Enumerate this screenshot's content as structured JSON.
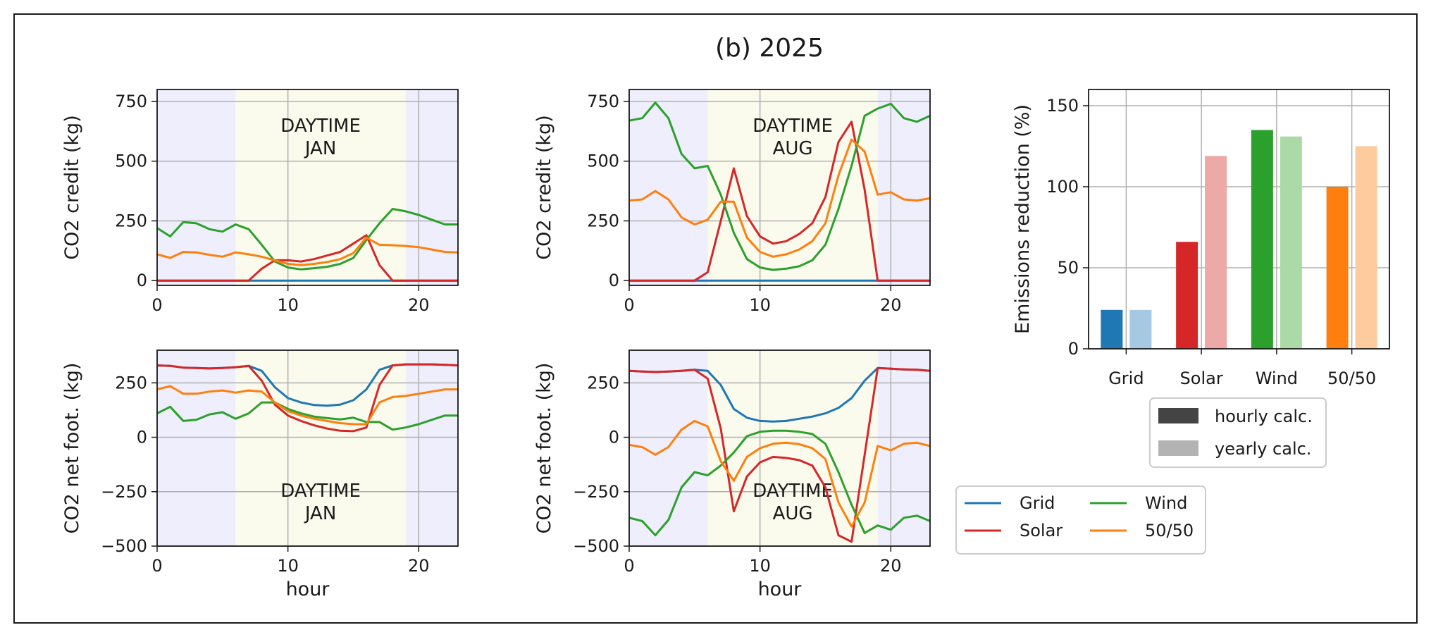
{
  "figure": {
    "title": "(b) 2025",
    "colors": {
      "Grid": "#1f77b4",
      "Solar": "#d62728",
      "Wind": "#2ca02c",
      "50/50": "#ff7f0e",
      "Grid_light": "#a6c8e2",
      "Solar_light": "#eda8a8",
      "Wind_light": "#abdaa6",
      "50/50_light": "#fdcb9d",
      "night_band": "#eeeefc",
      "day_band": "#fafaed",
      "grid_line": "#b0b0b0"
    },
    "line_legend": {
      "entries": [
        "Grid",
        "Solar",
        "Wind",
        "50/50"
      ]
    },
    "bar_legend": {
      "entries": [
        {
          "label": "hourly calc.",
          "color": "#444444"
        },
        {
          "label": "yearly calc.",
          "color": "#b3b3b3"
        }
      ]
    }
  },
  "chart_data": [
    {
      "type": "line",
      "panel": "credit-jan",
      "annotation": [
        "DAYTIME",
        "JAN"
      ],
      "xlabel": "",
      "ylabel": "CO2 credit (kg)",
      "xlim": [
        0,
        23
      ],
      "ylim": [
        -20,
        800
      ],
      "xticks": [
        0,
        10,
        20
      ],
      "yticks": [
        0,
        250,
        500,
        750
      ],
      "daytime": [
        6,
        19
      ],
      "x": [
        0,
        1,
        2,
        3,
        4,
        5,
        6,
        7,
        8,
        9,
        10,
        11,
        12,
        13,
        14,
        15,
        16,
        17,
        18,
        19,
        20,
        21,
        22,
        23
      ],
      "series": [
        {
          "name": "Grid",
          "values": [
            0,
            0,
            0,
            0,
            0,
            0,
            0,
            0,
            0,
            0,
            0,
            0,
            0,
            0,
            0,
            0,
            0,
            0,
            0,
            0,
            0,
            0,
            0,
            0
          ]
        },
        {
          "name": "Solar",
          "values": [
            0,
            0,
            0,
            0,
            0,
            0,
            0,
            0,
            50,
            85,
            85,
            80,
            90,
            105,
            120,
            155,
            190,
            65,
            0,
            0,
            0,
            0,
            0,
            0
          ]
        },
        {
          "name": "Wind",
          "values": [
            220,
            185,
            245,
            240,
            215,
            205,
            235,
            215,
            150,
            80,
            55,
            47,
            52,
            58,
            70,
            95,
            170,
            240,
            300,
            290,
            275,
            255,
            235,
            235
          ]
        },
        {
          "name": "50/50",
          "values": [
            110,
            95,
            120,
            118,
            108,
            100,
            118,
            110,
            100,
            85,
            70,
            65,
            70,
            78,
            90,
            115,
            180,
            150,
            148,
            145,
            140,
            130,
            120,
            118
          ]
        }
      ]
    },
    {
      "type": "line",
      "panel": "credit-aug",
      "annotation": [
        "DAYTIME",
        "AUG"
      ],
      "xlabel": "",
      "ylabel": "CO2 credit (kg)",
      "xlim": [
        0,
        23
      ],
      "ylim": [
        -20,
        800
      ],
      "xticks": [
        0,
        10,
        20
      ],
      "yticks": [
        0,
        250,
        500,
        750
      ],
      "daytime": [
        6,
        19
      ],
      "x": [
        0,
        1,
        2,
        3,
        4,
        5,
        6,
        7,
        8,
        9,
        10,
        11,
        12,
        13,
        14,
        15,
        16,
        17,
        18,
        19,
        20,
        21,
        22,
        23
      ],
      "series": [
        {
          "name": "Grid",
          "values": [
            0,
            0,
            0,
            0,
            0,
            0,
            0,
            0,
            0,
            0,
            0,
            0,
            0,
            0,
            0,
            0,
            0,
            0,
            0,
            0,
            0,
            0,
            0,
            0
          ]
        },
        {
          "name": "Solar",
          "values": [
            0,
            0,
            0,
            0,
            0,
            0,
            35,
            250,
            470,
            270,
            185,
            155,
            165,
            195,
            240,
            350,
            580,
            665,
            380,
            0,
            0,
            0,
            0,
            0
          ]
        },
        {
          "name": "Wind",
          "values": [
            670,
            680,
            745,
            680,
            530,
            470,
            480,
            360,
            200,
            90,
            55,
            45,
            50,
            60,
            85,
            150,
            300,
            480,
            690,
            720,
            740,
            680,
            665,
            690
          ]
        },
        {
          "name": "50/50",
          "values": [
            335,
            340,
            375,
            340,
            265,
            235,
            255,
            330,
            330,
            180,
            120,
            100,
            110,
            130,
            165,
            240,
            440,
            590,
            540,
            360,
            370,
            340,
            335,
            345
          ]
        }
      ]
    },
    {
      "type": "line",
      "panel": "footprint-jan",
      "annotation": [
        "DAYTIME",
        "JAN"
      ],
      "xlabel": "hour",
      "ylabel": "CO2 net foot. (kg)",
      "xlim": [
        0,
        23
      ],
      "ylim": [
        -500,
        400
      ],
      "xticks": [
        0,
        10,
        20
      ],
      "yticks": [
        -500,
        -250,
        0,
        250
      ],
      "daytime": [
        6,
        19
      ],
      "x": [
        0,
        1,
        2,
        3,
        4,
        5,
        6,
        7,
        8,
        9,
        10,
        11,
        12,
        13,
        14,
        15,
        16,
        17,
        18,
        19,
        20,
        21,
        22,
        23
      ],
      "series": [
        {
          "name": "Grid",
          "values": [
            330,
            328,
            320,
            318,
            316,
            318,
            322,
            328,
            305,
            230,
            180,
            160,
            148,
            145,
            150,
            170,
            220,
            310,
            330,
            335,
            335,
            335,
            333,
            330
          ]
        },
        {
          "name": "Solar",
          "values": [
            330,
            328,
            320,
            318,
            316,
            318,
            322,
            328,
            260,
            150,
            100,
            75,
            55,
            40,
            30,
            28,
            45,
            240,
            330,
            335,
            335,
            335,
            333,
            330
          ]
        },
        {
          "name": "Wind",
          "values": [
            110,
            140,
            75,
            80,
            105,
            115,
            85,
            110,
            160,
            160,
            130,
            110,
            95,
            88,
            82,
            90,
            70,
            70,
            35,
            45,
            60,
            80,
            100,
            100
          ]
        },
        {
          "name": "50/50",
          "values": [
            220,
            235,
            200,
            200,
            210,
            215,
            205,
            215,
            210,
            160,
            120,
            100,
            85,
            75,
            65,
            60,
            60,
            160,
            185,
            190,
            200,
            210,
            220,
            220
          ]
        }
      ]
    },
    {
      "type": "line",
      "panel": "footprint-aug",
      "annotation": [
        "DAYTIME",
        "AUG"
      ],
      "xlabel": "hour",
      "ylabel": "CO2 net foot. (kg)",
      "xlim": [
        0,
        23
      ],
      "ylim": [
        -500,
        400
      ],
      "xticks": [
        0,
        10,
        20
      ],
      "yticks": [
        -500,
        -250,
        0,
        250
      ],
      "daytime": [
        6,
        19
      ],
      "x": [
        0,
        1,
        2,
        3,
        4,
        5,
        6,
        7,
        8,
        9,
        10,
        11,
        12,
        13,
        14,
        15,
        16,
        17,
        18,
        19,
        20,
        21,
        22,
        23
      ],
      "series": [
        {
          "name": "Grid",
          "values": [
            305,
            302,
            300,
            302,
            305,
            310,
            305,
            240,
            130,
            90,
            75,
            72,
            75,
            85,
            95,
            110,
            135,
            180,
            260,
            318,
            315,
            312,
            310,
            305
          ]
        },
        {
          "name": "Solar",
          "values": [
            305,
            302,
            300,
            302,
            305,
            310,
            270,
            40,
            -340,
            -180,
            -115,
            -90,
            -95,
            -105,
            -130,
            -230,
            -450,
            -480,
            -80,
            318,
            315,
            312,
            310,
            305
          ]
        },
        {
          "name": "Wind",
          "values": [
            -370,
            -385,
            -450,
            -380,
            -230,
            -160,
            -175,
            -130,
            -70,
            5,
            25,
            30,
            30,
            25,
            15,
            -30,
            -160,
            -310,
            -440,
            -405,
            -425,
            -370,
            -360,
            -385
          ]
        },
        {
          "name": "50/50",
          "values": [
            -35,
            -45,
            -80,
            -45,
            35,
            75,
            50,
            -110,
            -200,
            -90,
            -50,
            -30,
            -25,
            -32,
            -50,
            -100,
            -300,
            -410,
            -300,
            -40,
            -60,
            -30,
            -25,
            -40
          ]
        }
      ]
    },
    {
      "type": "bar",
      "panel": "emissions-reduction",
      "xlabel": "",
      "ylabel": "Emissions reduction (%)",
      "ylim": [
        0,
        150
      ],
      "yticks": [
        0,
        50,
        100,
        150
      ],
      "categories": [
        "Grid",
        "Solar",
        "Wind",
        "50/50"
      ],
      "series": [
        {
          "name": "hourly calc.",
          "values": [
            24,
            66,
            135,
            100
          ]
        },
        {
          "name": "yearly calc.",
          "values": [
            24,
            119,
            131,
            125
          ]
        }
      ]
    }
  ]
}
